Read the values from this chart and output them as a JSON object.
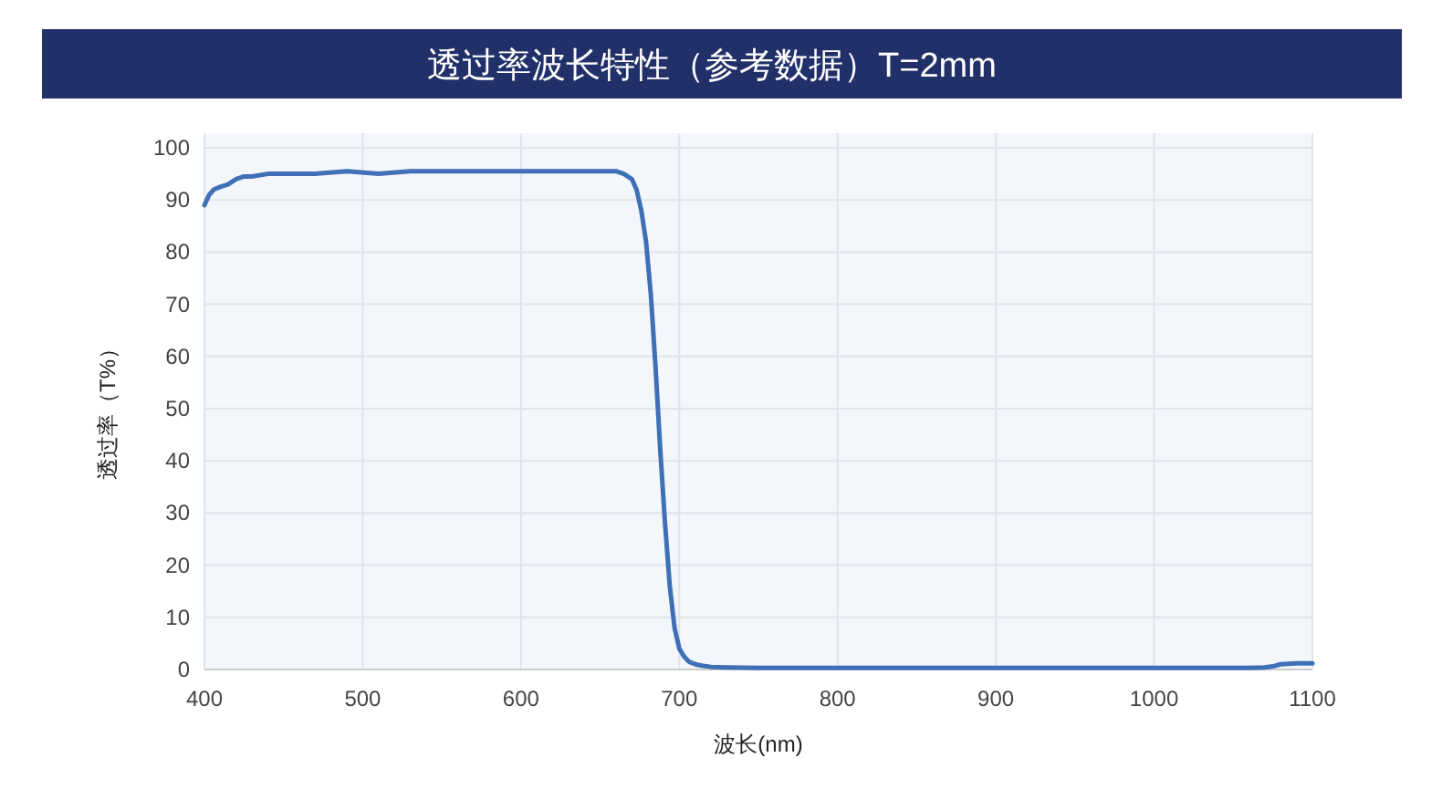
{
  "chart_data": {
    "type": "line",
    "title": "透过率波长特性（参考数据）T=2mm",
    "xlabel": "波长(nm)",
    "ylabel": "透过率（T%）",
    "series": [
      {
        "color": "#3f6fb5",
        "x": [
          400,
          403,
          406,
          410,
          415,
          420,
          425,
          430,
          440,
          450,
          470,
          490,
          510,
          530,
          550,
          570,
          590,
          610,
          630,
          650,
          660,
          665,
          670,
          673,
          676,
          679,
          682,
          685,
          688,
          691,
          694,
          697,
          700,
          703,
          706,
          710,
          715,
          720,
          730,
          750,
          800,
          900,
          1000,
          1060,
          1070,
          1075,
          1080,
          1090,
          1100
        ],
        "values": [
          89,
          91,
          92,
          92.5,
          93,
          94,
          94.5,
          94.5,
          95,
          95,
          95,
          95.5,
          95,
          95.5,
          95.5,
          95.5,
          95.5,
          95.5,
          95.5,
          95.5,
          95.5,
          95,
          94,
          92,
          88,
          82,
          72,
          58,
          42,
          28,
          16,
          8,
          4,
          2.5,
          1.5,
          1,
          0.7,
          0.5,
          0.4,
          0.3,
          0.3,
          0.3,
          0.3,
          0.3,
          0.4,
          0.6,
          1,
          1.2,
          1.2
        ]
      }
    ],
    "xlim": [
      400,
      1100
    ],
    "ylim": [
      0,
      100
    ],
    "xticks": [
      400,
      500,
      600,
      700,
      800,
      900,
      1000,
      1100
    ],
    "yticks": [
      0,
      10,
      20,
      30,
      40,
      50,
      60,
      70,
      80,
      90,
      100
    ],
    "grid": true,
    "marker": "none",
    "line_style": "solid"
  }
}
